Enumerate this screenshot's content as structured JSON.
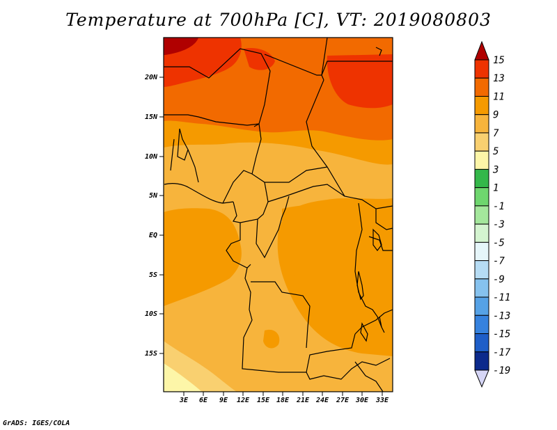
{
  "title": "Temperature at 700hPa [C], VT: 2019080803",
  "credit": "GrADS: IGES/COLA",
  "map": {
    "region": "Central Africa",
    "lat_range": [
      -19.5,
      24.5
    ],
    "lon_range": [
      0,
      34.5
    ],
    "lat_ticks": [
      {
        "value": 20,
        "label": "20N"
      },
      {
        "value": 15,
        "label": "15N"
      },
      {
        "value": 10,
        "label": "10N"
      },
      {
        "value": 5,
        "label": "5N"
      },
      {
        "value": 0,
        "label": "EQ"
      },
      {
        "value": -5,
        "label": "5S"
      },
      {
        "value": -10,
        "label": "10S"
      },
      {
        "value": -15,
        "label": "15S"
      }
    ],
    "lon_ticks": [
      {
        "value": 3,
        "label": "3E"
      },
      {
        "value": 6,
        "label": "6E"
      },
      {
        "value": 9,
        "label": "9E"
      },
      {
        "value": 12,
        "label": "12E"
      },
      {
        "value": 15,
        "label": "15E"
      },
      {
        "value": 18,
        "label": "18E"
      },
      {
        "value": 21,
        "label": "21E"
      },
      {
        "value": 24,
        "label": "24E"
      },
      {
        "value": 27,
        "label": "27E"
      },
      {
        "value": 30,
        "label": "30E"
      },
      {
        "value": 33,
        "label": "33E"
      }
    ]
  },
  "colorbar": {
    "levels": [
      {
        "label": "15",
        "color": "#b00000"
      },
      {
        "label": "13",
        "color": "#ee3300"
      },
      {
        "label": "11",
        "color": "#f26a00"
      },
      {
        "label": "9",
        "color": "#f59a00"
      },
      {
        "label": "7",
        "color": "#f7b43c"
      },
      {
        "label": "5",
        "color": "#f9d070"
      },
      {
        "label": "3",
        "color": "#fdf6a8"
      },
      {
        "label": "1",
        "color": "#34b84a"
      },
      {
        "label": "-1",
        "color": "#6ed66e"
      },
      {
        "label": "-3",
        "color": "#a4e79c"
      },
      {
        "label": "-5",
        "color": "#d4f4d0"
      },
      {
        "label": "-7",
        "color": "#e6f6fa"
      },
      {
        "label": "-9",
        "color": "#b6dcf4"
      },
      {
        "label": "-11",
        "color": "#86c2ee"
      },
      {
        "label": "-13",
        "color": "#56a2e6"
      },
      {
        "label": "-15",
        "color": "#3682de"
      },
      {
        "label": "-17",
        "color": "#1e5ec8"
      },
      {
        "label": "-19",
        "color": "#0c2a8c"
      }
    ],
    "min_color": "#d6d6f6"
  }
}
